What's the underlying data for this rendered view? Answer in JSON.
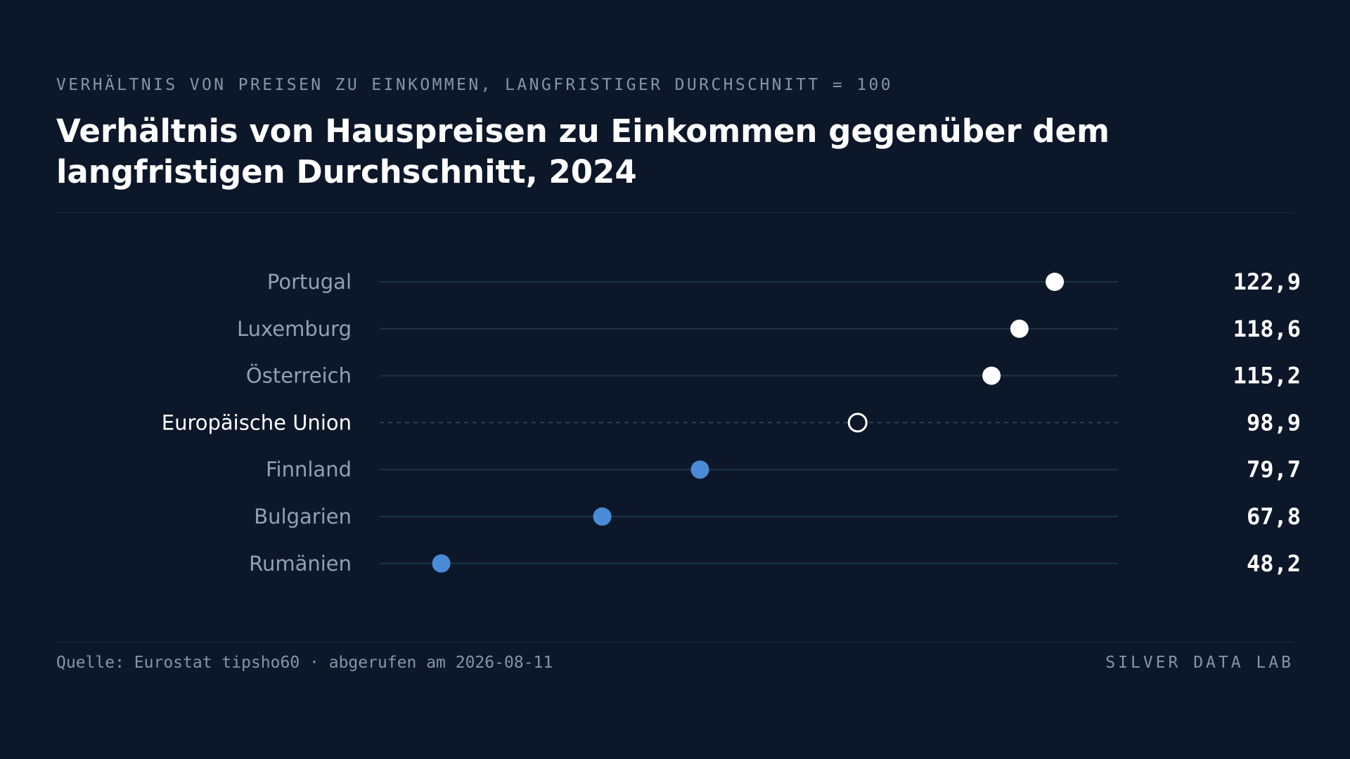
{
  "header": {
    "eyebrow": "VERHÄLTNIS VON PREISEN ZU EINKOMMEN, LANGFRISTIGER DURCHSCHNITT = 100",
    "title": "Verhältnis von Hauspreisen zu Einkommen gegenüber dem langfristigen Durchschnitt, 2024"
  },
  "footer": {
    "source": "Quelle: Eurostat tipsho60 · abgerufen am 2026-08-11",
    "brand": "SILVER DATA LAB"
  },
  "chart_data": {
    "type": "scatter",
    "title": "Verhältnis von Hauspreisen zu Einkommen gegenüber dem langfristigen Durchschnitt, 2024",
    "subtitle": "VERHÄLTNIS VON PREISEN ZU EINKOMMEN, LANGFRISTIGER DURCHSCHNITT = 100",
    "categories": [
      "Portugal",
      "Luxemburg",
      "Österreich",
      "Europäische Union",
      "Finnland",
      "Bulgarien",
      "Rumänien"
    ],
    "values": [
      122.9,
      118.6,
      115.2,
      98.9,
      79.7,
      67.8,
      48.2
    ],
    "value_labels": [
      "122,9",
      "118,6",
      "115,2",
      "98,9",
      "79,7",
      "67,8",
      "48,2"
    ],
    "highlight": "Europäische Union",
    "xlim": [
      40.7,
      130.6
    ],
    "grid": false,
    "colors": {
      "above_average": "#ffffff",
      "below_average": "#4a8bd8",
      "reference_fill": "#0c1829",
      "reference_stroke": "#ffffff",
      "track": "#1e3248",
      "reference_track": "#3a4a5e",
      "label": "#8fa0b8",
      "label_highlight": "#ffffff",
      "value": "#ffffff"
    }
  }
}
